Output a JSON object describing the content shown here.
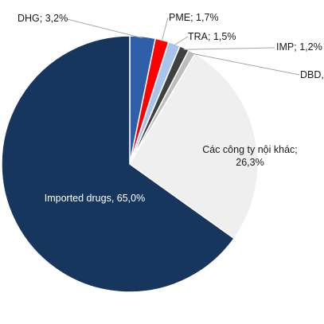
{
  "chart_data": {
    "type": "pie",
    "title": "",
    "slices": [
      {
        "name": "DHG",
        "value": 3.2,
        "value_text": "3,2%",
        "color": "#2e5fa8"
      },
      {
        "name": "PME",
        "value": 1.7,
        "value_text": "1,7%",
        "color": "#ff0000"
      },
      {
        "name": "TRA",
        "value": 1.5,
        "value_text": "1,5%",
        "color": "#a9c4ea"
      },
      {
        "name": "IMP",
        "value": 1.2,
        "value_text": "1,2%",
        "color": "#404040"
      },
      {
        "name": "DBD",
        "value": 0.9,
        "value_text": "",
        "color": "#bdbdbd"
      },
      {
        "name": "Các công ty nội khác",
        "value": 26.3,
        "value_text": "26,3%",
        "color": "#efefef"
      },
      {
        "name": "Imported drugs",
        "value": 65.0,
        "value_text": "65,0%",
        "color": "#17365d"
      }
    ],
    "start_angle_deg": 0,
    "direction": "clockwise",
    "legend": "none"
  }
}
